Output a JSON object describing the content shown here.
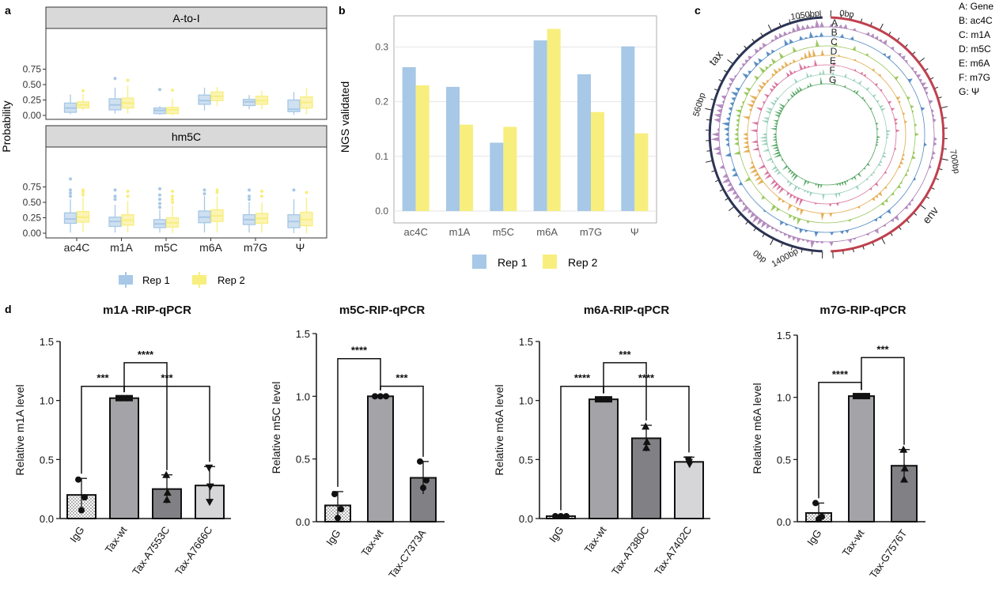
{
  "panels": {
    "a": "a",
    "b": "b",
    "c": "c",
    "d": "d"
  },
  "colors": {
    "rep1": "#a7c8e6",
    "rep2": "#f8ee7e",
    "strip_bg": "#d9d9d9",
    "circos_outer_left": "#2c3454",
    "circos_outer_right": "#c0404f",
    "bar_igg": "#ffffff",
    "bar_wt": "#a3a3a8",
    "bar_mut_dark": "#808085",
    "bar_mut_light": "#d6d6d8"
  },
  "chart_data": [
    {
      "id": "a",
      "type": "box",
      "ylabel": "Probability",
      "categories": [
        "ac4C",
        "m1A",
        "m5C",
        "m6A",
        "m7G",
        "Ψ"
      ],
      "y_ticks": [
        "0.00",
        "0.25",
        "0.50",
        "0.75"
      ],
      "ylim": [
        0,
        1.0
      ],
      "legend": [
        "Rep 1",
        "Rep 2"
      ],
      "legend_position": "bottom",
      "facets": [
        {
          "title": "A-to-I",
          "series": [
            {
              "name": "Rep 1",
              "boxes": [
                {
                  "q1": 0.05,
                  "med": 0.12,
                  "q3": 0.2,
                  "lo": 0.02,
                  "hi": 0.34,
                  "out": []
                },
                {
                  "q1": 0.09,
                  "med": 0.17,
                  "q3": 0.27,
                  "lo": 0.03,
                  "hi": 0.45,
                  "out": [
                    0.6
                  ]
                },
                {
                  "q1": 0.03,
                  "med": 0.08,
                  "q3": 0.12,
                  "lo": 0.01,
                  "hi": 0.15,
                  "out": [
                    0.42
                  ]
                },
                {
                  "q1": 0.18,
                  "med": 0.24,
                  "q3": 0.33,
                  "lo": 0.08,
                  "hi": 0.45,
                  "out": []
                },
                {
                  "q1": 0.16,
                  "med": 0.22,
                  "q3": 0.26,
                  "lo": 0.1,
                  "hi": 0.33,
                  "out": []
                },
                {
                  "q1": 0.06,
                  "med": 0.1,
                  "q3": 0.25,
                  "lo": 0.01,
                  "hi": 0.38,
                  "out": []
                }
              ]
            },
            {
              "name": "Rep 2",
              "boxes": [
                {
                  "q1": 0.12,
                  "med": 0.17,
                  "q3": 0.22,
                  "lo": 0.09,
                  "hi": 0.35,
                  "out": [
                    0.4
                  ]
                },
                {
                  "q1": 0.12,
                  "med": 0.2,
                  "q3": 0.28,
                  "lo": 0.03,
                  "hi": 0.48,
                  "out": [
                    0.57
                  ]
                },
                {
                  "q1": 0.03,
                  "med": 0.09,
                  "q3": 0.13,
                  "lo": 0.0,
                  "hi": 0.27,
                  "out": [
                    0.41
                  ]
                },
                {
                  "q1": 0.24,
                  "med": 0.31,
                  "q3": 0.38,
                  "lo": 0.15,
                  "hi": 0.46,
                  "out": []
                },
                {
                  "q1": 0.18,
                  "med": 0.24,
                  "q3": 0.31,
                  "lo": 0.1,
                  "hi": 0.4,
                  "out": []
                },
                {
                  "q1": 0.12,
                  "med": 0.21,
                  "q3": 0.3,
                  "lo": 0.02,
                  "hi": 0.44,
                  "out": []
                }
              ]
            }
          ]
        },
        {
          "title": "hm5C",
          "series": [
            {
              "name": "Rep 1",
              "boxes": [
                {
                  "q1": 0.16,
                  "med": 0.23,
                  "q3": 0.33,
                  "lo": 0.01,
                  "hi": 0.55,
                  "out": [
                    0.6,
                    0.65,
                    0.7,
                    0.88
                  ]
                },
                {
                  "q1": 0.11,
                  "med": 0.19,
                  "q3": 0.26,
                  "lo": 0.01,
                  "hi": 0.46,
                  "out": [
                    0.55,
                    0.6,
                    0.7
                  ]
                },
                {
                  "q1": 0.09,
                  "med": 0.15,
                  "q3": 0.22,
                  "lo": 0.01,
                  "hi": 0.38,
                  "out": [
                    0.42,
                    0.48,
                    0.55,
                    0.62,
                    0.72
                  ]
                },
                {
                  "q1": 0.17,
                  "med": 0.26,
                  "q3": 0.36,
                  "lo": 0.01,
                  "hi": 0.6,
                  "out": [
                    0.64,
                    0.7
                  ]
                },
                {
                  "q1": 0.14,
                  "med": 0.22,
                  "q3": 0.3,
                  "lo": 0.01,
                  "hi": 0.5,
                  "out": [
                    0.55,
                    0.6,
                    0.7
                  ]
                },
                {
                  "q1": 0.09,
                  "med": 0.19,
                  "q3": 0.3,
                  "lo": 0.0,
                  "hi": 0.55,
                  "out": [
                    0.7
                  ]
                }
              ]
            },
            {
              "name": "Rep 2",
              "boxes": [
                {
                  "q1": 0.18,
                  "med": 0.26,
                  "q3": 0.35,
                  "lo": 0.02,
                  "hi": 0.58,
                  "out": [
                    0.62,
                    0.67,
                    0.7
                  ]
                },
                {
                  "q1": 0.13,
                  "med": 0.21,
                  "q3": 0.3,
                  "lo": 0.01,
                  "hi": 0.52,
                  "out": [
                    0.6,
                    0.68
                  ]
                },
                {
                  "q1": 0.1,
                  "med": 0.17,
                  "q3": 0.25,
                  "lo": 0.0,
                  "hi": 0.45,
                  "out": [
                    0.5,
                    0.55,
                    0.6,
                    0.68
                  ]
                },
                {
                  "q1": 0.19,
                  "med": 0.28,
                  "q3": 0.38,
                  "lo": 0.01,
                  "hi": 0.6,
                  "out": [
                    0.66,
                    0.7
                  ]
                },
                {
                  "q1": 0.16,
                  "med": 0.24,
                  "q3": 0.32,
                  "lo": 0.01,
                  "hi": 0.5,
                  "out": [
                    0.6,
                    0.68
                  ]
                },
                {
                  "q1": 0.12,
                  "med": 0.22,
                  "q3": 0.34,
                  "lo": 0.0,
                  "hi": 0.58,
                  "out": [
                    0.66
                  ]
                }
              ]
            }
          ]
        }
      ]
    },
    {
      "id": "b",
      "type": "bar",
      "ylabel": "NGS validated",
      "categories": [
        "ac4C",
        "m1A",
        "m5C",
        "m6A",
        "m7G",
        "Ψ"
      ],
      "y_ticks": [
        "0.0",
        "0.1",
        "0.2",
        "0.3"
      ],
      "ylim": [
        -0.02,
        0.35
      ],
      "legend_position": "bottom",
      "series": [
        {
          "name": "Rep 1",
          "values": [
            0.263,
            0.227,
            0.125,
            0.312,
            0.25,
            0.301
          ]
        },
        {
          "name": "Rep 2",
          "values": [
            0.23,
            0.158,
            0.154,
            0.333,
            0.181,
            0.142
          ]
        }
      ]
    },
    {
      "id": "c",
      "type": "circos",
      "track_labels": [
        "A",
        "B",
        "C",
        "D",
        "E",
        "F",
        "G"
      ],
      "legend": [
        "A: Gene",
        "B: ac4C",
        "C: m1A",
        "D: m5C",
        "E: m6A",
        "F: m7G",
        "G: Ψ"
      ],
      "legend_position": "top-right",
      "segments": [
        {
          "name": "tax",
          "start_label": "0bp",
          "mid_label": "560bp",
          "end_label": "1050bp"
        },
        {
          "name": "env",
          "start_label": "0bp",
          "mid_label": "700bp",
          "end_label": "1400bp"
        }
      ],
      "track_colors": [
        "#a87ab5",
        "#3f7cba",
        "#8cbf45",
        "#e0a23c",
        "#d35e8d",
        "#8cc9b0",
        "#3e9a4f"
      ]
    },
    {
      "id": "d1",
      "type": "bar",
      "title": "m1A -RIP-qPCR",
      "ylabel": "Relative  m1A  level",
      "categories": [
        "IgG",
        "Tax-wt",
        "Tax-A7553C",
        "Tax-A7666C"
      ],
      "values": [
        0.2,
        1.02,
        0.25,
        0.28
      ],
      "errors": [
        0.14,
        0.01,
        0.12,
        0.16
      ],
      "points": [
        [
          0.33,
          0.18,
          0.07
        ],
        [
          1.02,
          1.02,
          1.02
        ],
        [
          0.37,
          0.22,
          0.16
        ],
        [
          0.43,
          0.27,
          0.14
        ]
      ],
      "markers": [
        "circle",
        "square",
        "triangle",
        "triangle-down"
      ],
      "fills": [
        "dots",
        "#a3a3a8",
        "#808085",
        "#d6d6d8"
      ],
      "y_ticks": [
        "0.0",
        "0.5",
        "1.0",
        "1.5"
      ],
      "ylim": [
        0,
        1.5
      ],
      "brackets": [
        {
          "from": 0,
          "to": 1,
          "y": 1.12,
          "label": "***"
        },
        {
          "from": 1,
          "to": 2,
          "y": 1.32,
          "label": "****"
        },
        {
          "from": 1,
          "to": 3,
          "y": 1.12,
          "label": "***"
        }
      ]
    },
    {
      "id": "d2",
      "type": "bar",
      "title": "m5C-RIP-qPCR",
      "ylabel": "Relative  m5C  level",
      "categories": [
        "IgG",
        "Tax-wt",
        "Tax-C7373A"
      ],
      "values": [
        0.13,
        1.0,
        0.35
      ],
      "errors": [
        0.11,
        0.01,
        0.13
      ],
      "points": [
        [
          0.22,
          0.1,
          0.03
        ],
        [
          1.0,
          1.0,
          1.0
        ],
        [
          0.48,
          0.33,
          0.27
        ]
      ],
      "markers": [
        "circle",
        "circle",
        "circle"
      ],
      "fills": [
        "dots",
        "#a3a3a8",
        "#808085"
      ],
      "y_ticks": [
        "0.0",
        "0.5",
        "1.0",
        "1.5"
      ],
      "ylim": [
        0,
        1.5
      ],
      "brackets": [
        {
          "from": 0,
          "to": 1,
          "y": 1.3,
          "label": "****"
        },
        {
          "from": 1,
          "to": 2,
          "y": 1.08,
          "label": "***"
        }
      ]
    },
    {
      "id": "d3",
      "type": "bar",
      "title": "m6A-RIP-qPCR",
      "ylabel": "Relative  m6A  level",
      "categories": [
        "IgG",
        "Tax-wt",
        "Tax-A7380C",
        "Tax-A7402C"
      ],
      "values": [
        0.02,
        1.01,
        0.68,
        0.48
      ],
      "errors": [
        0.01,
        0.01,
        0.11,
        0.04
      ],
      "points": [
        [
          0.02,
          0.02,
          0.02
        ],
        [
          1.01,
          1.01,
          1.01
        ],
        [
          0.78,
          0.65,
          0.6
        ],
        [
          0.5,
          0.46,
          0.48
        ]
      ],
      "markers": [
        "circle",
        "square",
        "triangle",
        "triangle-down"
      ],
      "fills": [
        "dots",
        "#a3a3a8",
        "#808085",
        "#d6d6d8"
      ],
      "y_ticks": [
        "0.0",
        "0.5",
        "1.0",
        "1.5"
      ],
      "ylim": [
        0,
        1.5
      ],
      "brackets": [
        {
          "from": 0,
          "to": 1,
          "y": 1.12,
          "label": "****"
        },
        {
          "from": 1,
          "to": 2,
          "y": 1.32,
          "label": "***"
        },
        {
          "from": 1,
          "to": 3,
          "y": 1.12,
          "label": "****"
        }
      ]
    },
    {
      "id": "d4",
      "type": "bar",
      "title": "m7G-RIP-qPCR",
      "ylabel": "Relative  m6A  level",
      "categories": [
        "IgG",
        "Tax-wt",
        "Tax-G7576T"
      ],
      "values": [
        0.07,
        1.01,
        0.45
      ],
      "errors": [
        0.08,
        0.01,
        0.13
      ],
      "points": [
        [
          0.15,
          0.04,
          0.02
        ],
        [
          1.01,
          1.01,
          1.01
        ],
        [
          0.58,
          0.43,
          0.34
        ]
      ],
      "markers": [
        "circle",
        "square",
        "triangle"
      ],
      "fills": [
        "dots",
        "#a3a3a8",
        "#808085"
      ],
      "y_ticks": [
        "0.0",
        "0.5",
        "1.0",
        "1.5"
      ],
      "ylim": [
        0,
        1.5
      ],
      "brackets": [
        {
          "from": 0,
          "to": 1,
          "y": 1.12,
          "label": "****"
        },
        {
          "from": 1,
          "to": 2,
          "y": 1.32,
          "label": "***"
        }
      ]
    }
  ]
}
